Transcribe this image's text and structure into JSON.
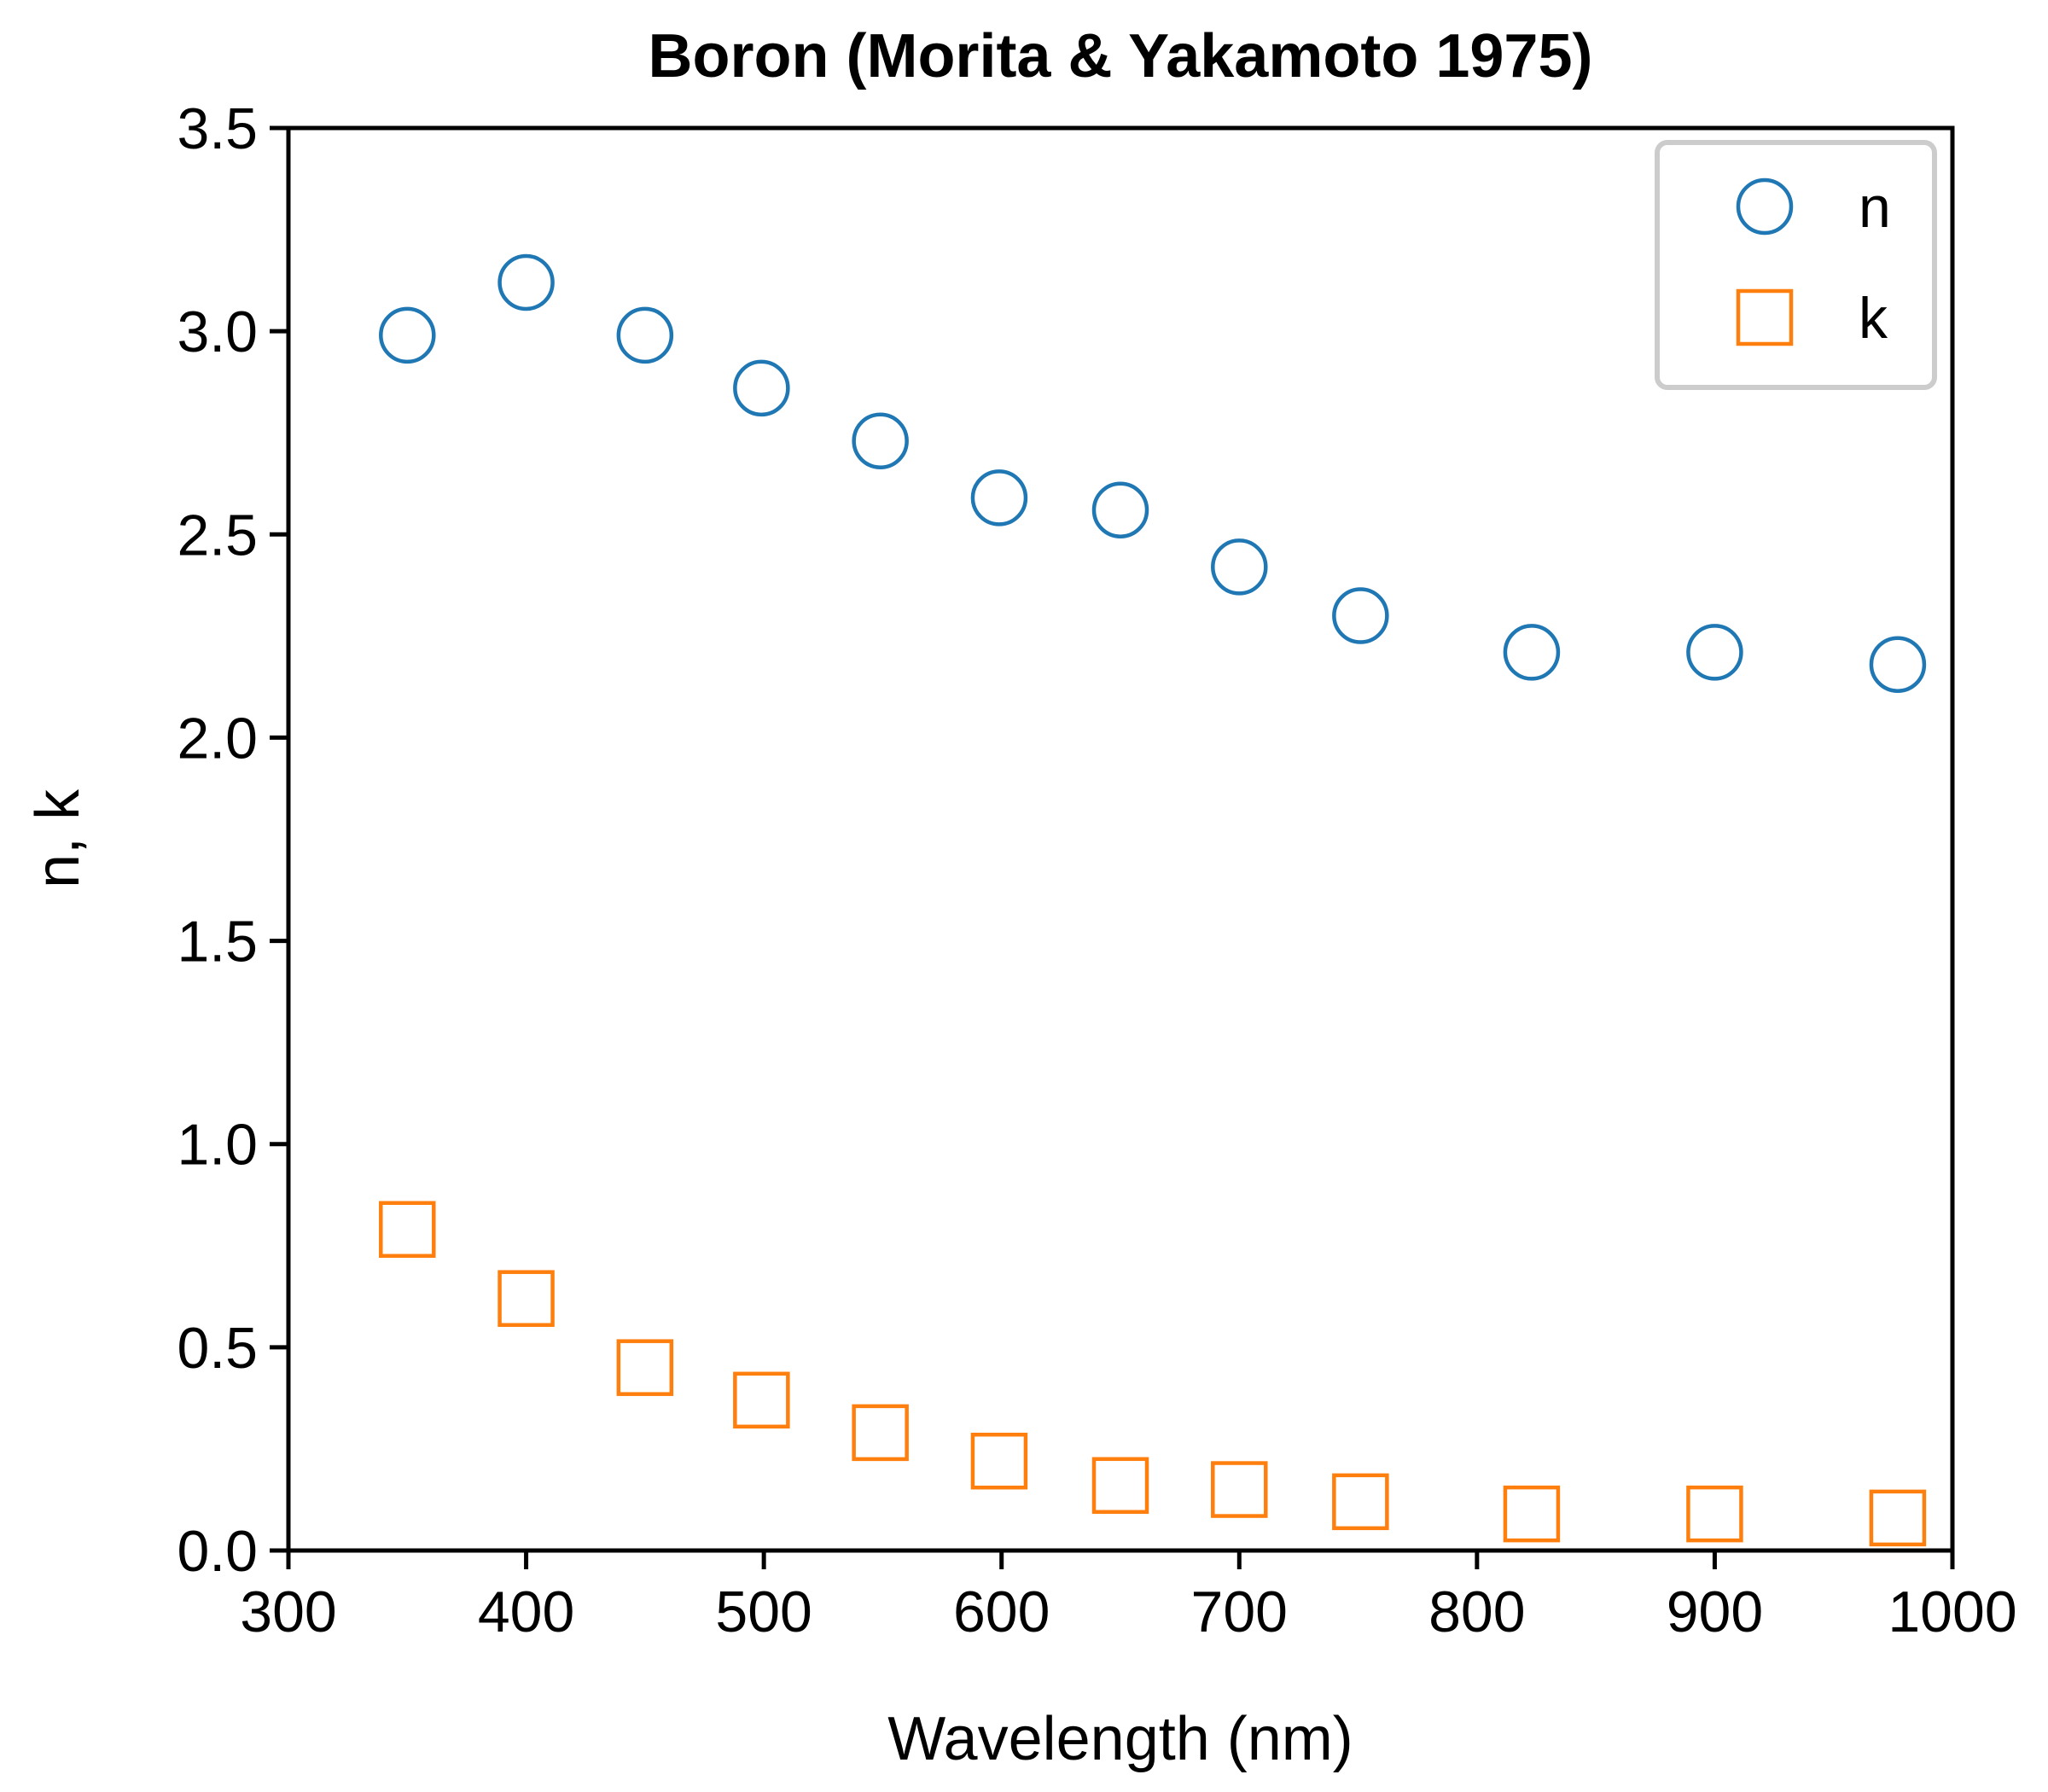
{
  "chart_data": {
    "type": "scatter",
    "title": "Boron (Morita & Yakamoto 1975)",
    "xlabel": "Wavelength (nm)",
    "ylabel": "n, k",
    "xlim": [
      300,
      1000
    ],
    "ylim": [
      0.0,
      3.5
    ],
    "xticks": [
      300,
      400,
      500,
      600,
      700,
      800,
      900,
      1000
    ],
    "yticks": [
      0.0,
      0.5,
      1.0,
      1.5,
      2.0,
      2.5,
      3.0,
      3.5
    ],
    "xtick_labels": [
      "300",
      "400",
      "500",
      "600",
      "700",
      "800",
      "900",
      "1000"
    ],
    "ytick_labels": [
      "0.0",
      "0.5",
      "1.0",
      "1.5",
      "2.0",
      "2.5",
      "3.0",
      "3.5"
    ],
    "grid": false,
    "legend_position": "top-right",
    "series": [
      {
        "name": "n",
        "marker": "circle",
        "color": "#1f77b4",
        "x": [
          350,
          400,
          450,
          499,
          549,
          599,
          650,
          700,
          751,
          823,
          900,
          977
        ],
        "y": [
          2.99,
          3.12,
          2.99,
          2.86,
          2.73,
          2.59,
          2.56,
          2.42,
          2.3,
          2.21,
          2.21,
          2.18
        ]
      },
      {
        "name": "k",
        "marker": "square",
        "color": "#ff7f0e",
        "x": [
          350,
          400,
          450,
          499,
          549,
          599,
          650,
          700,
          751,
          823,
          900,
          977
        ],
        "y": [
          0.79,
          0.62,
          0.45,
          0.37,
          0.29,
          0.22,
          0.16,
          0.15,
          0.12,
          0.09,
          0.09,
          0.08
        ]
      }
    ]
  }
}
